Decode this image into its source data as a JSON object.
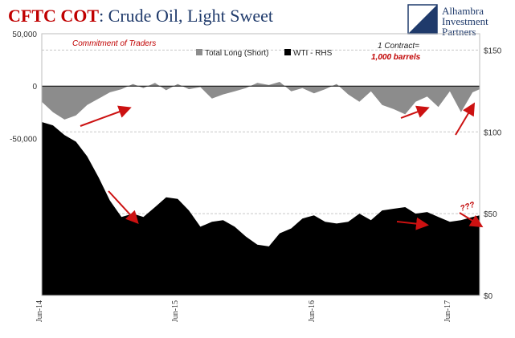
{
  "chart_data": {
    "type": "area",
    "title_part1": "CFTC COT",
    "title_part2": ": Crude Oil, Light Sweet",
    "subtitle": "Commitment of Traders",
    "contract_note_line1": "1 Contract=",
    "contract_note_line2": "1,000 barrels",
    "question_note": "???",
    "logo_line1": "Alhambra",
    "logo_line2": "Investment",
    "logo_line3": "Partners",
    "colors": {
      "positions": "#8c8c8c",
      "wti": "#000000",
      "title_red": "#c00000",
      "title_navy": "#1f3a6b",
      "annotation_red": "#c00000",
      "arrow_red": "#cc1111"
    },
    "legend": [
      {
        "label": "Total Long (Short)",
        "color": "#8c8c8c"
      },
      {
        "label": "WTI - RHS",
        "color": "#000000"
      }
    ],
    "left_axis": {
      "ticks": [
        50000,
        0,
        -50000
      ],
      "tick_labels": [
        "50,000",
        "0",
        "-50,000"
      ],
      "range": [
        -200000,
        50000
      ]
    },
    "right_axis": {
      "ticks": [
        0,
        50,
        100,
        150
      ],
      "tick_labels": [
        "$0",
        "$50",
        "$100",
        "$150"
      ],
      "range": [
        0,
        160
      ]
    },
    "x_axis": {
      "tick_labels": [
        "Jun-14",
        "Jun-15",
        "Jun-16",
        "Jun-17"
      ],
      "tick_dates": [
        "2014-06-01",
        "2015-06-01",
        "2016-06-01",
        "2017-06-01"
      ],
      "range": [
        "2014-06-01",
        "2017-08-20"
      ]
    },
    "series": [
      {
        "name": "Total Long (Short)",
        "x": [
          "2014-06-01",
          "2014-07-01",
          "2014-08-01",
          "2014-09-01",
          "2014-10-01",
          "2014-11-01",
          "2014-12-01",
          "2015-01-01",
          "2015-02-01",
          "2015-03-01",
          "2015-04-01",
          "2015-05-01",
          "2015-06-01",
          "2015-07-01",
          "2015-08-01",
          "2015-09-01",
          "2015-10-01",
          "2015-11-01",
          "2015-12-01",
          "2016-01-01",
          "2016-02-01",
          "2016-03-01",
          "2016-04-01",
          "2016-05-01",
          "2016-06-01",
          "2016-07-01",
          "2016-08-01",
          "2016-09-01",
          "2016-10-01",
          "2016-11-01",
          "2016-12-01",
          "2017-01-01",
          "2017-02-01",
          "2017-03-01",
          "2017-04-01",
          "2017-05-01",
          "2017-06-01",
          "2017-07-01",
          "2017-08-01",
          "2017-08-20"
        ],
        "values": [
          -15000,
          -25000,
          -32000,
          -28000,
          -18000,
          -12000,
          -6000,
          -3000,
          2000,
          -2000,
          3000,
          -4000,
          2000,
          -3000,
          -1000,
          -12000,
          -8000,
          -5000,
          -2000,
          3000,
          1000,
          4000,
          -5000,
          -2000,
          -7000,
          -3000,
          2000,
          -8000,
          -15000,
          -5000,
          -18000,
          -22000,
          -27000,
          -15000,
          -10000,
          -20000,
          -5000,
          -25000,
          -6000,
          -3000
        ]
      },
      {
        "name": "WTI - RHS",
        "x": [
          "2014-06-01",
          "2014-07-01",
          "2014-08-01",
          "2014-09-01",
          "2014-10-01",
          "2014-11-01",
          "2014-12-01",
          "2015-01-01",
          "2015-02-01",
          "2015-03-01",
          "2015-04-01",
          "2015-05-01",
          "2015-06-01",
          "2015-07-01",
          "2015-08-01",
          "2015-09-01",
          "2015-10-01",
          "2015-11-01",
          "2015-12-01",
          "2016-01-01",
          "2016-02-01",
          "2016-03-01",
          "2016-04-01",
          "2016-05-01",
          "2016-06-01",
          "2016-07-01",
          "2016-08-01",
          "2016-09-01",
          "2016-10-01",
          "2016-11-01",
          "2016-12-01",
          "2017-01-01",
          "2017-02-01",
          "2017-03-01",
          "2017-04-01",
          "2017-05-01",
          "2017-06-01",
          "2017-07-01",
          "2017-08-01",
          "2017-08-20"
        ],
        "values": [
          106,
          104,
          98,
          94,
          85,
          72,
          58,
          48,
          50,
          48,
          54,
          60,
          59,
          52,
          42,
          45,
          46,
          42,
          36,
          31,
          30,
          38,
          41,
          47,
          49,
          45,
          44,
          45,
          50,
          46,
          52,
          53,
          54,
          50,
          51,
          48,
          45,
          46,
          48,
          49
        ]
      }
    ]
  }
}
